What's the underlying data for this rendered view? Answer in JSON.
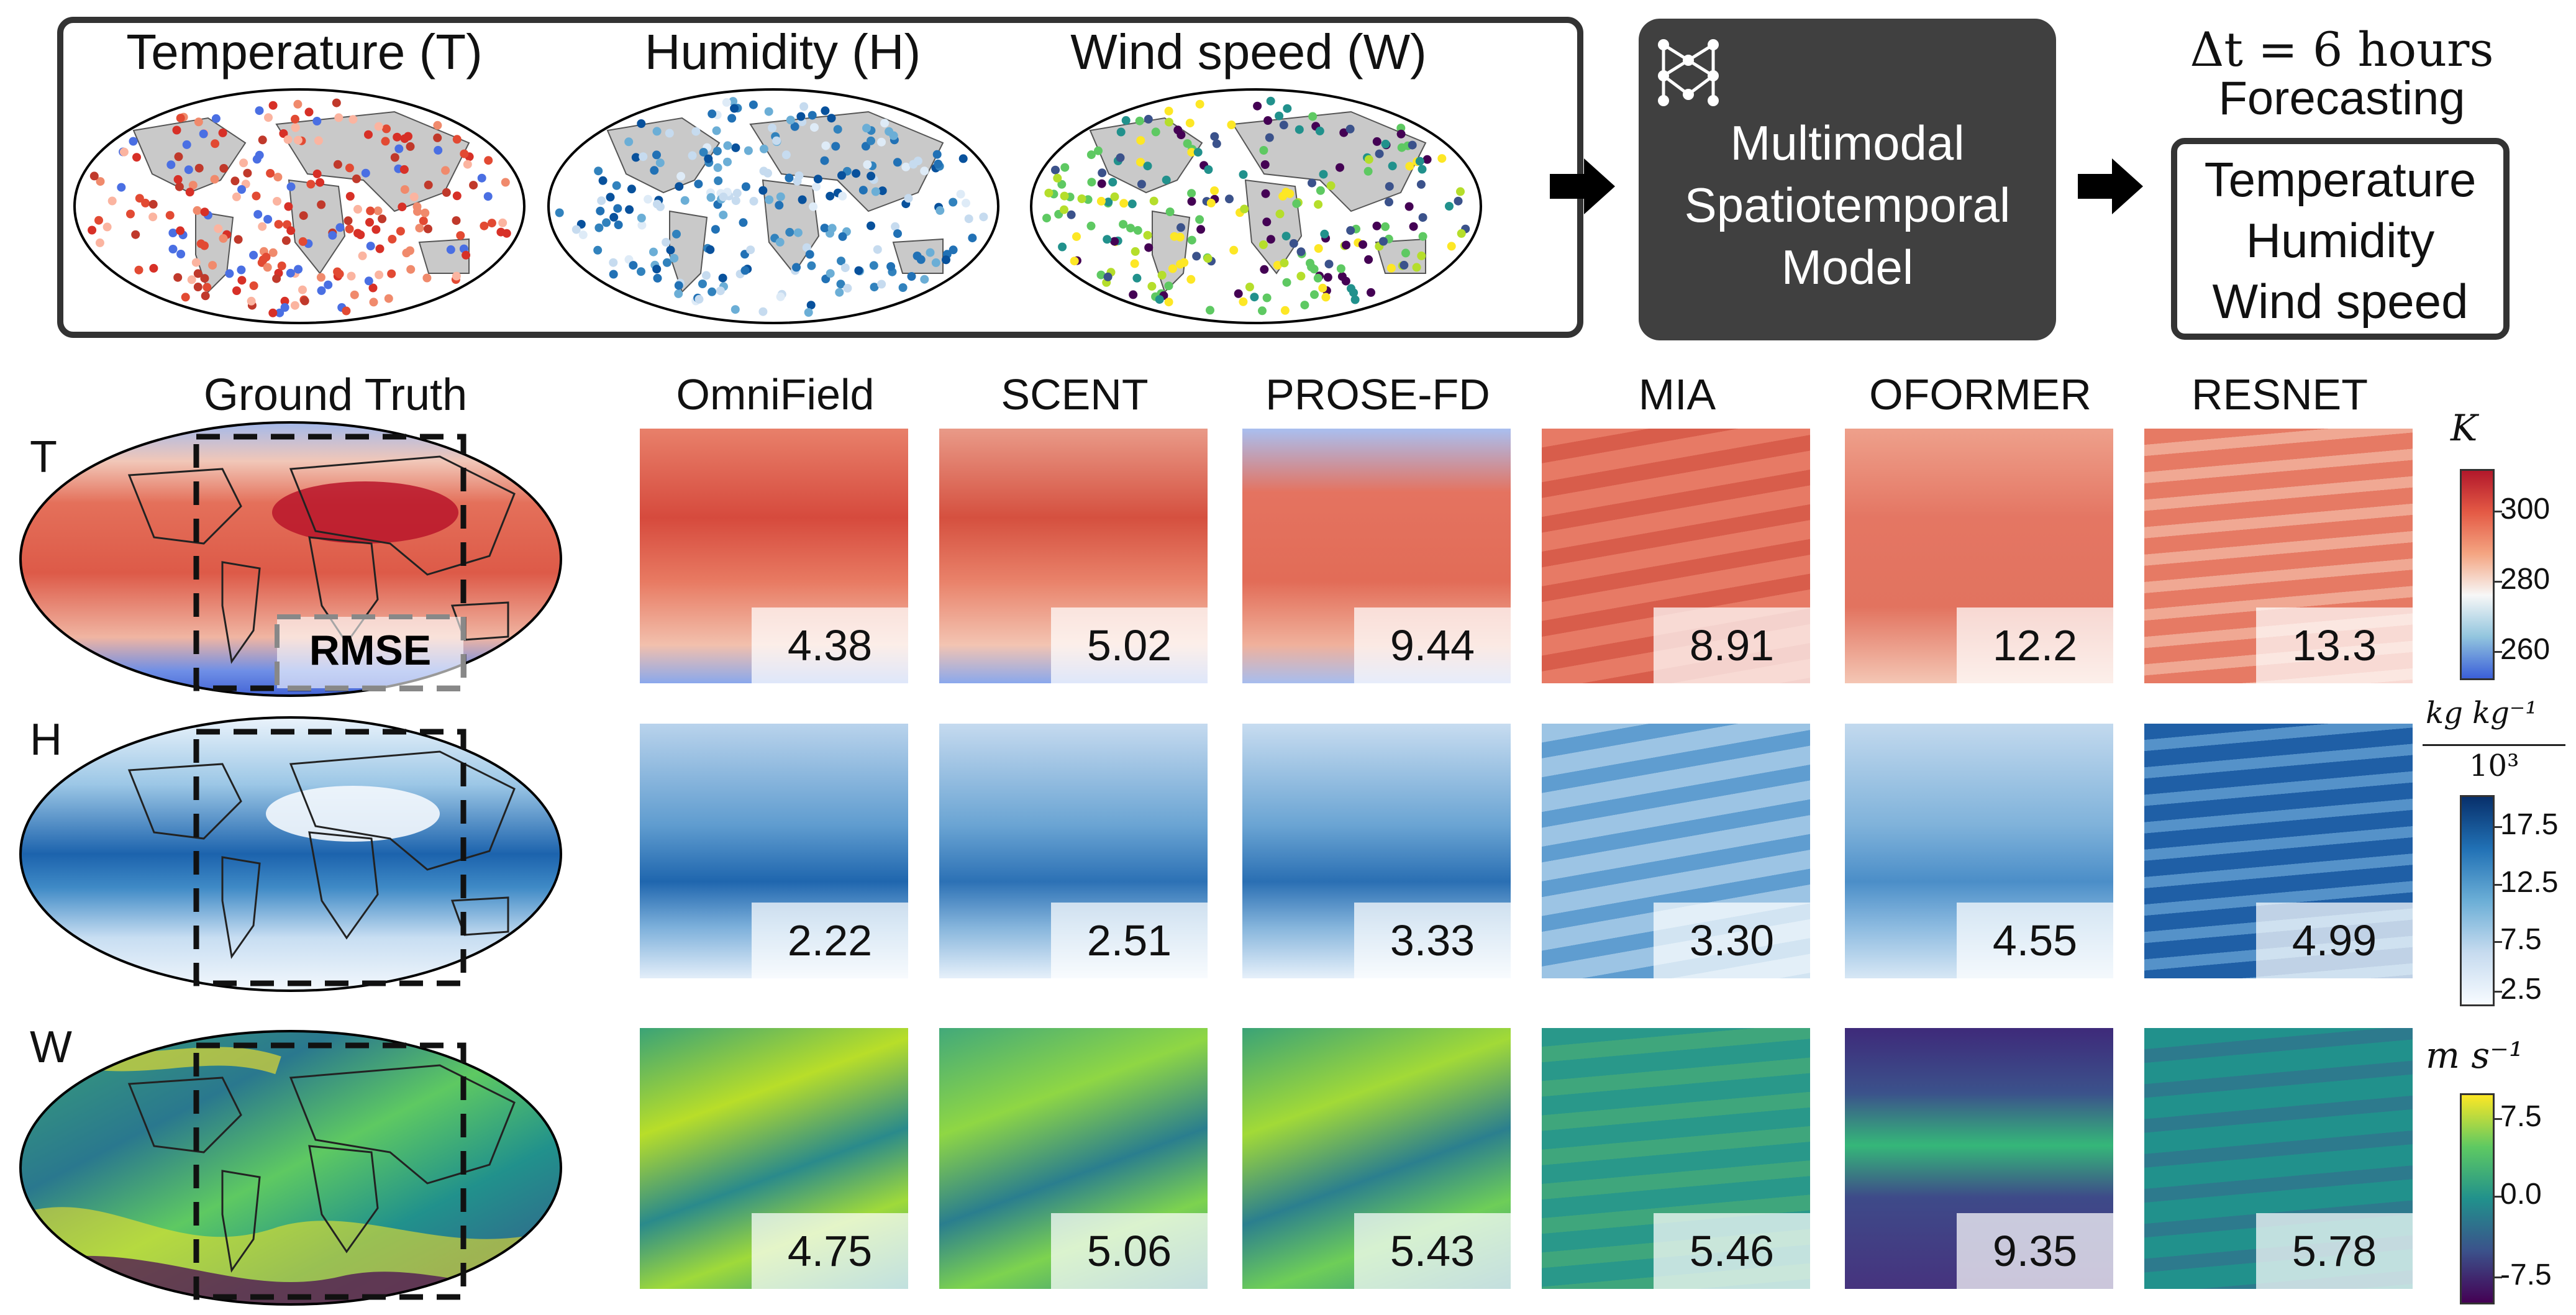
{
  "inputs": {
    "maps": [
      {
        "title": "Temperature (T)"
      },
      {
        "title": "Humidity (H)"
      },
      {
        "title": "Wind speed (W)"
      }
    ]
  },
  "model": {
    "lines": [
      "Multimodal",
      "Spatiotemporal",
      "Model"
    ],
    "icon": "neural-network-icon"
  },
  "forecast": {
    "dt_label": "Δt = 6 hours",
    "label": "Forecasting",
    "outputs": [
      "Temperature",
      "Humidity",
      "Wind speed"
    ]
  },
  "grid": {
    "ground_truth_label": "Ground Truth",
    "rmse_label": "RMSE",
    "columns": [
      "OmniField",
      "SCENT",
      "PROSE-FD",
      "MIA",
      "OFORMER",
      "RESNET"
    ],
    "rows": [
      {
        "label": "T",
        "values": [
          "4.38",
          "5.02",
          "9.44",
          "8.91",
          "12.2",
          "13.3"
        ]
      },
      {
        "label": "H",
        "values": [
          "2.22",
          "2.51",
          "3.33",
          "3.30",
          "4.55",
          "4.99"
        ]
      },
      {
        "label": "W",
        "values": [
          "4.75",
          "5.06",
          "5.43",
          "5.46",
          "9.35",
          "5.78"
        ]
      }
    ]
  },
  "colorbars": [
    {
      "unit": "K",
      "ticks": [
        "300",
        "280",
        "260"
      ],
      "colors": [
        "#b2182b",
        "#e45a45",
        "#f4a582",
        "#f7f7f7",
        "#92c5de",
        "#3b5fd9"
      ]
    },
    {
      "unit_num": "kg kg⁻¹",
      "unit_den": "10³",
      "ticks": [
        "17.5",
        "12.5",
        "7.5",
        "2.5"
      ],
      "colors": [
        "#08306b",
        "#2171b5",
        "#6baed6",
        "#c6dbef",
        "#f7fbff"
      ]
    },
    {
      "unit": "m s⁻¹",
      "ticks": [
        "7.5",
        "0.0",
        "-7.5"
      ],
      "colors": [
        "#fde725",
        "#5ec962",
        "#21918c",
        "#3b528b",
        "#440154"
      ]
    }
  ]
}
